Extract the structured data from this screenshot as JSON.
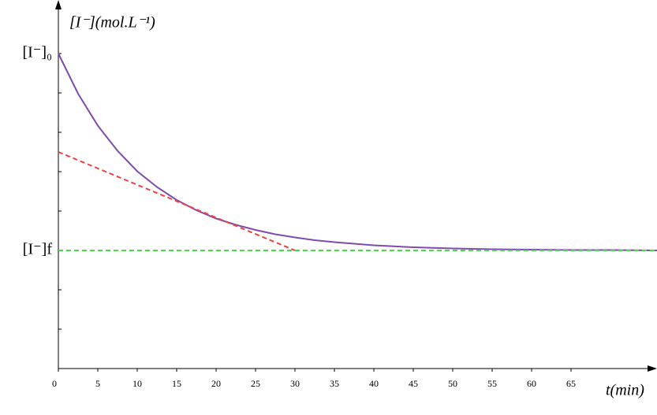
{
  "chart_data": {
    "type": "line",
    "ylabel": "[I⁻](mol.L⁻¹)",
    "xlabel": "t(min)",
    "xlim": [
      0,
      75.9
    ],
    "ylim": [
      0,
      9.2
    ],
    "xticks": [
      0,
      5,
      10,
      15,
      20,
      25,
      30,
      35,
      40,
      45,
      50,
      55,
      60,
      65
    ],
    "yticks": [
      {
        "value": 8,
        "label": "[I⁻]₀"
      },
      {
        "value": 3,
        "label": "[I⁻]f"
      }
    ],
    "yminorticks": [
      1,
      2,
      4,
      5,
      6,
      7
    ],
    "series": [
      {
        "color": "#7e4bb0",
        "dash": false,
        "x": [
          0,
          2.5,
          5,
          7.5,
          10,
          12.5,
          15,
          17.5,
          20,
          22.5,
          25,
          27.5,
          30,
          32.5,
          35,
          37.5,
          40,
          45,
          50,
          55,
          60,
          65,
          70,
          75.9
        ],
        "values": [
          8,
          6.98,
          6.17,
          5.53,
          5.01,
          4.61,
          4.28,
          4.02,
          3.81,
          3.65,
          3.52,
          3.41,
          3.33,
          3.26,
          3.21,
          3.17,
          3.13,
          3.08,
          3.05,
          3.03,
          3.02,
          3.01,
          3.01,
          3
        ]
      },
      {
        "color": "#f04040",
        "dash": true,
        "x": [
          0,
          30
        ],
        "values": [
          5.5,
          3
        ]
      },
      {
        "color": "#44dd44",
        "dash": true,
        "x": [
          0,
          75.9
        ],
        "values": [
          3,
          3
        ]
      }
    ]
  }
}
